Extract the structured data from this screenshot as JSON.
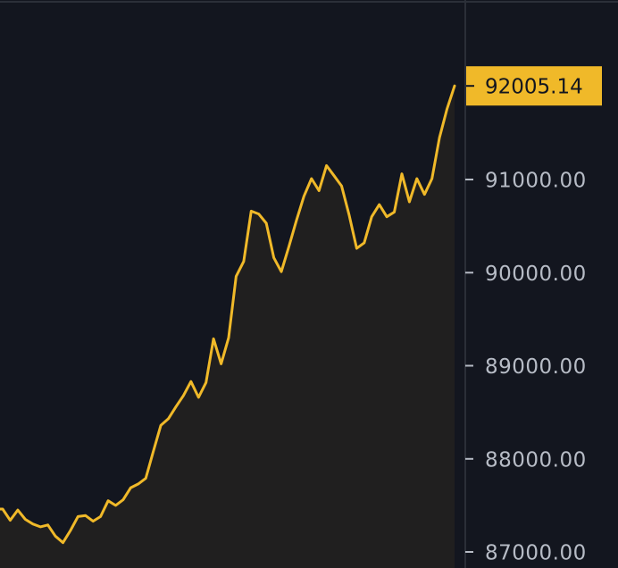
{
  "chart_data": {
    "type": "area",
    "title": "",
    "xlabel": "",
    "ylabel": "",
    "ylim": [
      86950,
      92500
    ],
    "yticks": [
      87000,
      88000,
      89000,
      90000,
      91000
    ],
    "ytick_labels": [
      "87000.00",
      "88000.00",
      "89000.00",
      "90000.00",
      "91000.00"
    ],
    "grid": false,
    "series": [
      {
        "values": [
          87460,
          87340,
          87450,
          87350,
          87300,
          87270,
          87290,
          87170,
          87100,
          87230,
          87380,
          87390,
          87330,
          87380,
          87550,
          87500,
          87560,
          87690,
          87730,
          87790,
          88080,
          88360,
          88430,
          88560,
          88680,
          88830,
          88660,
          88820,
          89290,
          89020,
          89300,
          89960,
          90120,
          90660,
          90630,
          90530,
          90160,
          90010,
          90280,
          90560,
          90820,
          91010,
          90880,
          91150,
          91040,
          90930,
          90620,
          90260,
          90320,
          90600,
          90730,
          90600,
          90650,
          91060,
          90760,
          91010,
          90840,
          91010,
          91450,
          91760,
          92005.14
        ]
      }
    ],
    "last_price_label": "92005.14",
    "colors": {
      "background": "#13161f",
      "line": "#f0b929",
      "area_fill": "#201f1f",
      "axis_border": "#2b2f38",
      "tick_text": "#b7bcc6",
      "price_tag_bg": "#f0b929",
      "price_tag_text": "#13161f"
    }
  }
}
